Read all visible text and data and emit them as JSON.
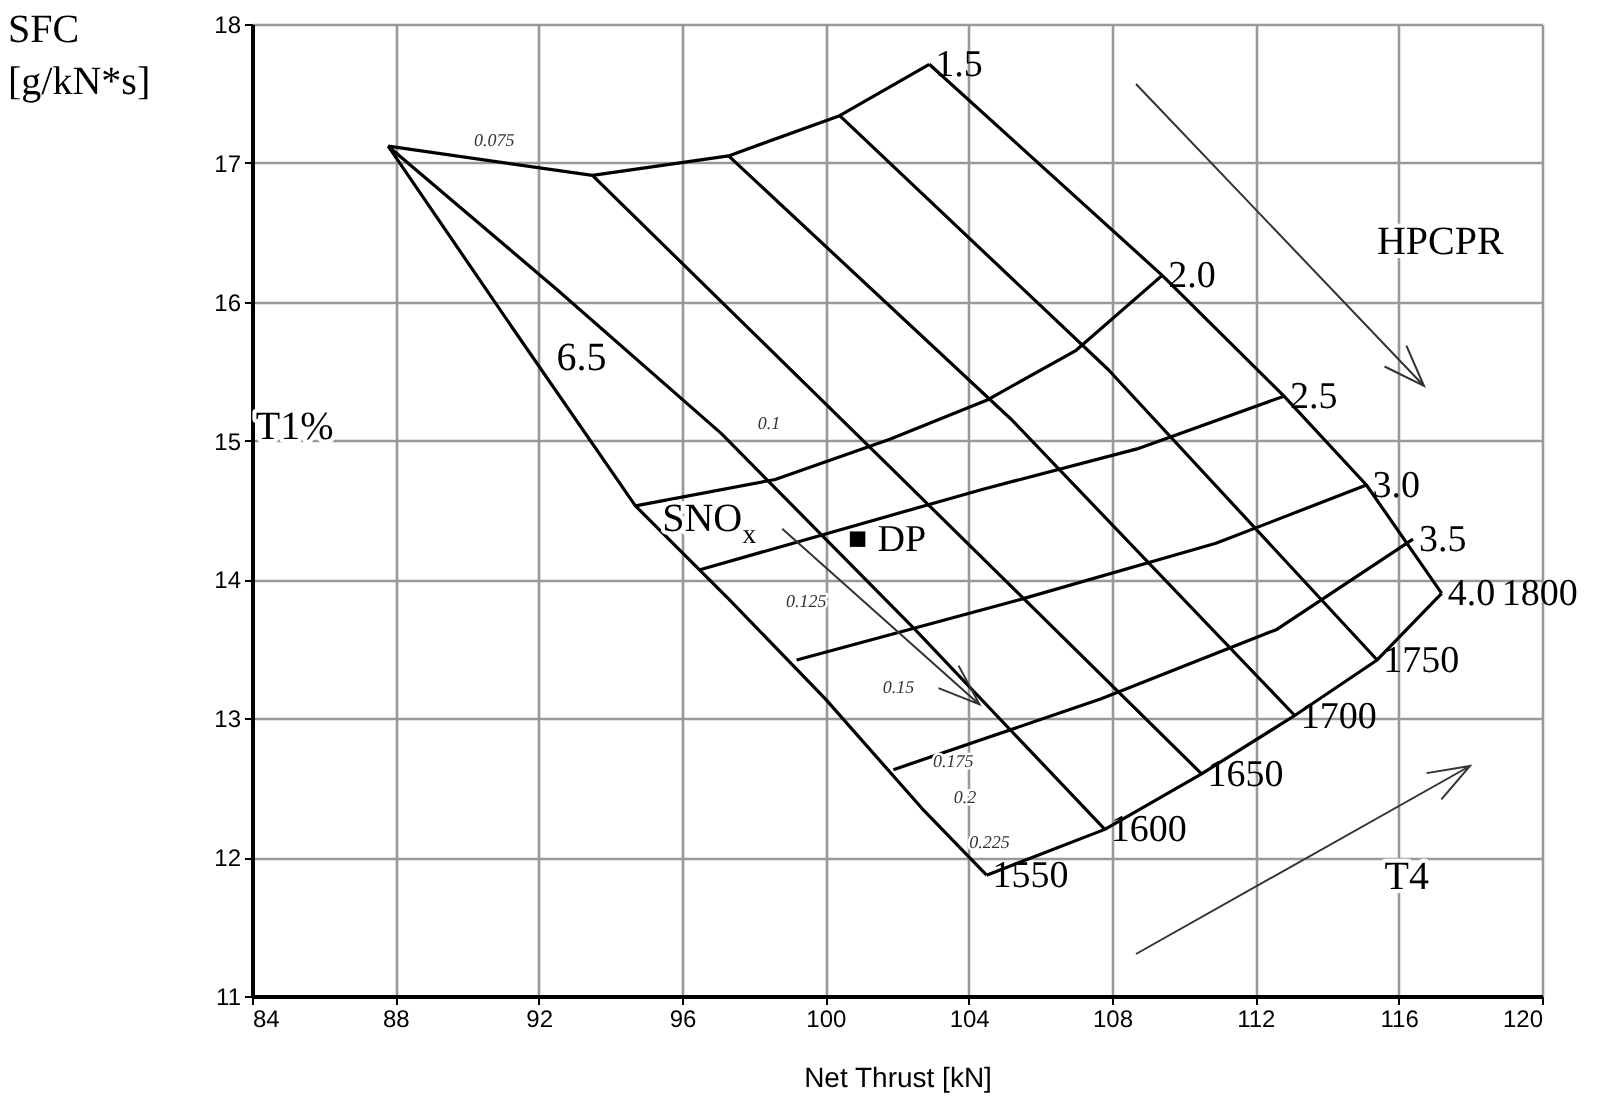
{
  "chart_data": {
    "type": "line",
    "xlabel": "Net Thrust [kN]",
    "ylabel": "SFC [g/kN*s]",
    "xlim": [
      84,
      120
    ],
    "xticks": [
      84,
      88,
      92,
      96,
      100,
      104,
      108,
      112,
      116,
      120
    ],
    "ylim": [
      11,
      18
    ],
    "yticks": [
      11,
      12,
      13,
      14,
      15,
      16,
      17,
      18
    ],
    "grid": true,
    "marker": "none",
    "line_style": "solid",
    "series": [
      {
        "name": "1.5",
        "color": "#000000",
        "x": [
          87.8,
          93.5,
          97.3,
          100.4,
          102.9
        ],
        "values": [
          17.12,
          16.91,
          17.05,
          17.34,
          17.71
        ]
      },
      {
        "name": "2.0",
        "color": "#000000",
        "x": [
          94.7,
          98.6,
          101.8,
          104.5,
          107.0,
          109.4
        ],
        "values": [
          14.53,
          14.72,
          15.01,
          15.29,
          15.65,
          16.19
        ]
      },
      {
        "name": "2.5",
        "color": "#000000",
        "x": [
          96.5,
          104.4,
          108.7,
          112.8
        ],
        "values": [
          14.07,
          14.65,
          14.94,
          15.32
        ]
      },
      {
        "name": "3.0",
        "color": "#000000",
        "x": [
          99.2,
          105.5,
          110.9,
          115.1
        ],
        "values": [
          13.42,
          13.86,
          14.26,
          14.68
        ]
      },
      {
        "name": "3.5",
        "color": "#000000",
        "x": [
          101.9,
          107.7,
          112.6,
          116.4
        ],
        "values": [
          12.63,
          13.14,
          13.64,
          14.29
        ]
      },
      {
        "name": "4.0",
        "color": "#000000",
        "x": [
          104.5,
          107.8,
          110.5,
          113.1,
          115.4,
          117.2
        ],
        "values": [
          11.87,
          12.2,
          12.6,
          13.02,
          13.42,
          13.9
        ]
      },
      {
        "name": "1550",
        "color": "#000000",
        "x": [
          87.8,
          91.3,
          94.7,
          97.3,
          100.0,
          102.7,
          104.5
        ],
        "values": [
          17.12,
          15.8,
          14.53,
          13.86,
          13.14,
          12.35,
          11.87
        ]
      },
      {
        "name": "1600",
        "color": "#000000",
        "x": [
          87.8,
          92.5,
          97.1,
          102.5,
          107.8
        ],
        "values": [
          17.12,
          16.09,
          15.05,
          13.64,
          12.2
        ]
      },
      {
        "name": "1650",
        "color": "#000000",
        "x": [
          93.5,
          102.0,
          110.5
        ],
        "values": [
          16.91,
          14.76,
          12.6
        ]
      },
      {
        "name": "1700",
        "color": "#000000",
        "x": [
          97.3,
          105.2,
          113.1
        ],
        "values": [
          17.05,
          15.15,
          13.02
        ]
      },
      {
        "name": "1750",
        "color": "#000000",
        "x": [
          100.4,
          107.9,
          115.4
        ],
        "values": [
          17.34,
          15.51,
          13.42
        ]
      },
      {
        "name": "1800",
        "color": "#000000",
        "x": [
          102.9,
          109.4,
          112.8,
          115.1,
          117.2
        ],
        "values": [
          17.71,
          16.19,
          15.32,
          14.68,
          13.9
        ]
      },
      {
        "type": "scatter",
        "name": "DP",
        "color": "#000000",
        "marker": "square",
        "x": [
          100.9
        ],
        "values": [
          14.29
        ]
      }
    ],
    "annotations": [
      "6.5",
      {
        "text": "SNO$_{x}$",
        "x": 104.3,
        "y": 13.1
      },
      "HPCPR",
      "T4",
      "T1%",
      "0.075",
      "0.1",
      "0.125",
      "0.15",
      "0.175",
      "0.2",
      "0.225"
    ]
  }
}
